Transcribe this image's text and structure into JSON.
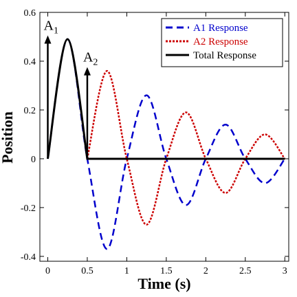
{
  "chart_data": {
    "type": "line",
    "xlabel": "Time (s)",
    "ylabel": "Position",
    "xlim": [
      -0.1,
      3.05
    ],
    "ylim": [
      -0.42,
      0.6
    ],
    "x_ticks": [
      0,
      0.5,
      1,
      1.5,
      2,
      2.5,
      3
    ],
    "x_tick_labels": [
      "0",
      "0.5",
      "1",
      "1.5",
      "2",
      "2.5",
      "3"
    ],
    "y_ticks": [
      -0.4,
      -0.2,
      0,
      0.2,
      0.4,
      0.6
    ],
    "y_tick_labels": [
      "-0.4",
      "-0.2",
      "0",
      "0.2",
      "0.4",
      "0.6"
    ],
    "grid": false,
    "legend_position": "top-right",
    "series": [
      {
        "name": "A1 Response",
        "color": "#0000cc",
        "style": "dashed",
        "x": [
          0,
          0.25,
          0.5,
          0.75,
          1.0,
          1.25,
          1.5,
          1.75,
          2.0,
          2.25,
          2.5,
          2.75,
          3.0
        ],
        "y": [
          0,
          0.49,
          0,
          -0.37,
          0,
          0.26,
          0,
          -0.19,
          0,
          0.14,
          0,
          -0.1,
          0
        ]
      },
      {
        "name": "A2 Response",
        "color": "#cc0000",
        "style": "dotted",
        "x": [
          0.5,
          0.75,
          1.0,
          1.25,
          1.5,
          1.75,
          2.0,
          2.25,
          2.5,
          2.75,
          3.0
        ],
        "y": [
          0,
          0.36,
          0,
          -0.27,
          0,
          0.19,
          0,
          -0.14,
          0,
          0.1,
          0
        ]
      },
      {
        "name": "Total Response",
        "color": "#000000",
        "style": "solid",
        "x": [
          0,
          0.25,
          0.5,
          0.75,
          1.0,
          1.5,
          2.0,
          2.5,
          3.0
        ],
        "y": [
          0,
          0.49,
          0,
          0,
          0,
          0,
          0,
          0,
          0
        ]
      }
    ],
    "annotations": [
      {
        "label": "A",
        "sub": "1",
        "x": 0,
        "y_from": 0,
        "y_to": 0.5
      },
      {
        "label": "A",
        "sub": "2",
        "x": 0.5,
        "y_from": 0,
        "y_to": 0.37
      }
    ]
  }
}
